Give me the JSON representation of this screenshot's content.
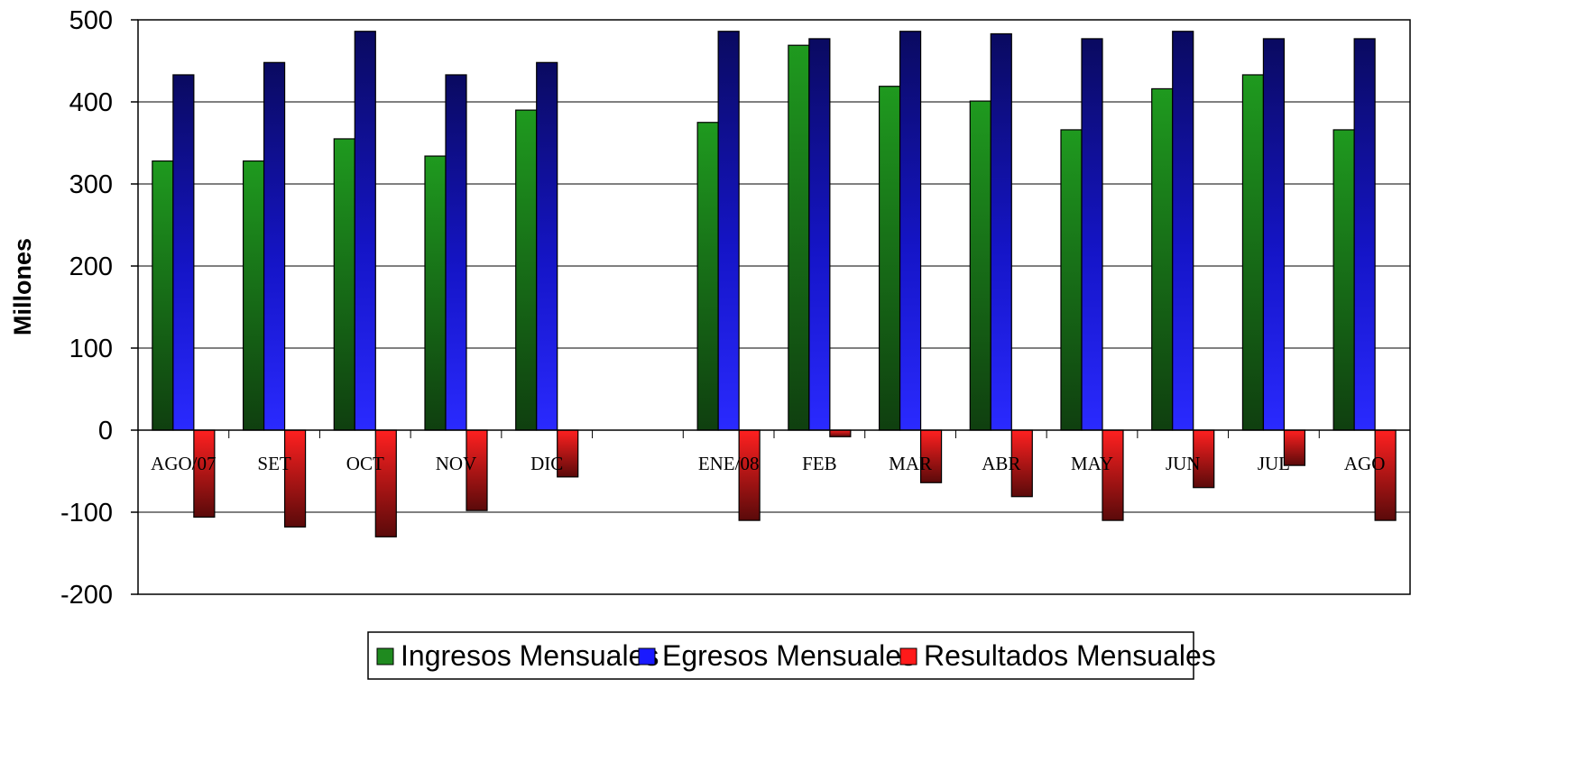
{
  "chart_data": {
    "type": "bar",
    "title": "",
    "xlabel": "",
    "ylabel": "Millones",
    "ylim": [
      -200,
      500
    ],
    "yticks": [
      500,
      400,
      300,
      200,
      100,
      0,
      -100,
      -200
    ],
    "grid": true,
    "legend_position": "bottom",
    "categories": [
      "AGO/07",
      "SET",
      "OCT",
      "NOV",
      "DIC",
      "",
      "ENE/08",
      "FEB",
      "MAR",
      "ABR",
      "MAY",
      "JUN",
      "JUL",
      "AGO"
    ],
    "series": [
      {
        "name": "Ingresos Mensuales",
        "color": "#1f8a1f",
        "values": [
          328,
          328,
          355,
          334,
          390,
          null,
          375,
          469,
          419,
          401,
          366,
          416,
          433,
          366
        ]
      },
      {
        "name": "Egresos Mensuales",
        "color": "#1a1aff",
        "values": [
          433,
          448,
          486,
          433,
          448,
          null,
          486,
          477,
          486,
          483,
          477,
          486,
          477,
          477
        ]
      },
      {
        "name": "Resultados Mensuales",
        "color": "#ff1a1a",
        "values": [
          -106,
          -118,
          -130,
          -98,
          -57,
          null,
          -110,
          -8,
          -64,
          -81,
          -110,
          -70,
          -43,
          -110
        ]
      }
    ]
  }
}
